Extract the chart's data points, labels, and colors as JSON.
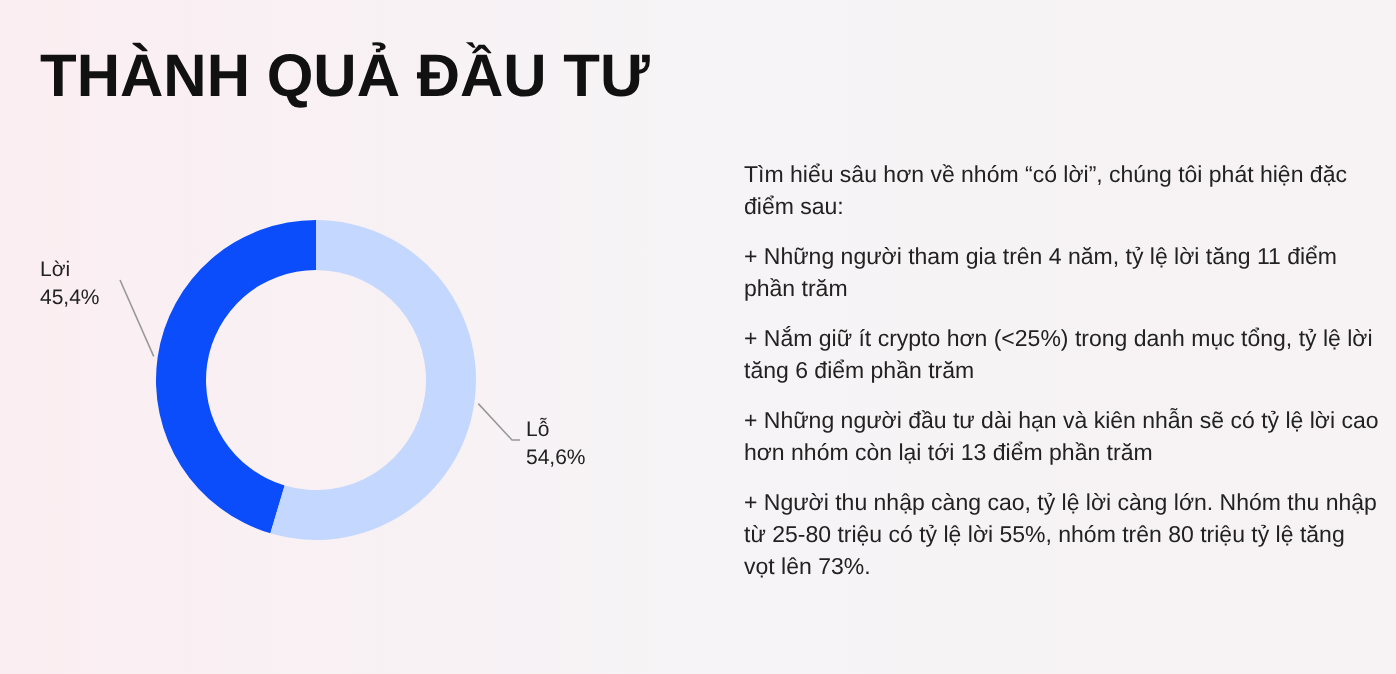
{
  "chart_data": [
    {
      "type": "donut",
      "title": "THÀNH QUẢ ĐẦU TƯ",
      "categories": [
        "Lời",
        "Lỗ"
      ],
      "values": [
        45.4,
        54.6
      ],
      "colors": [
        "#0b4dfb",
        "#c3d7ff"
      ],
      "value_labels": [
        "45,4%",
        "54,6%"
      ]
    },
    {
      "type": "other",
      "annotations": [
        "Tìm hiểu sâu hơn về nhóm “có lời”, chúng tôi phát hiện đặc điểm sau:",
        "+ Những người tham gia trên 4 năm, tỷ lệ lời tăng 11 điểm phần trăm",
        "+ Nắm giữ ít crypto hơn (<25%) trong danh mục tổng, tỷ lệ lời tăng 6 điểm phần trăm",
        "+ Những người đầu tư dài hạn và kiên nhẫn sẽ có tỷ lệ lời cao hơn nhóm còn lại tới 13 điểm phần trăm",
        "+ Người thu nhập càng cao, tỷ lệ lời càng lớn. Nhóm thu nhập từ 25-80 triệu có tỷ lệ lời 55%, nhóm trên 80 triệu tỷ lệ tăng vọt lên 73%."
      ]
    }
  ]
}
